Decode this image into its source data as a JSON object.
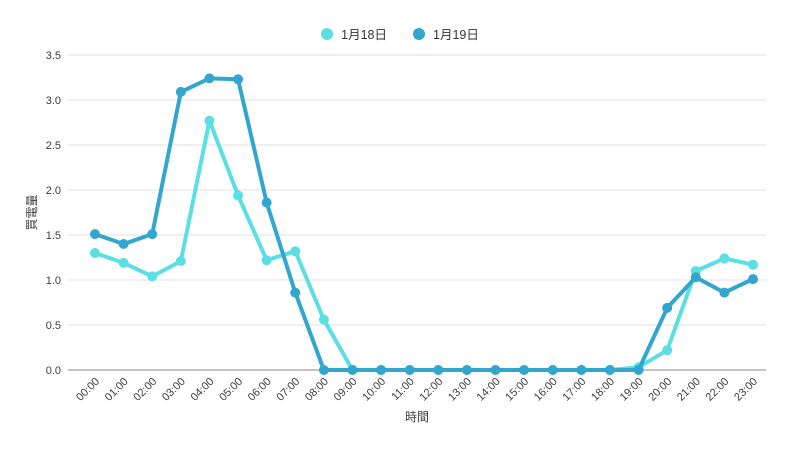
{
  "page": {
    "background": "#ffffff"
  },
  "chart_data": {
    "type": "line",
    "title": "",
    "xlabel": "時間",
    "ylabel": "買電量",
    "x": [
      "00:00",
      "01:00",
      "02:00",
      "03:00",
      "04:00",
      "05:00",
      "06:00",
      "07:00",
      "08:00",
      "09:00",
      "10:00",
      "11:00",
      "12:00",
      "13:00",
      "14:00",
      "15:00",
      "16:00",
      "17:00",
      "18:00",
      "19:00",
      "20:00",
      "21:00",
      "22:00",
      "23:00"
    ],
    "series": [
      {
        "name": "1月18日",
        "color": "#5BDFE3",
        "values": [
          1.3,
          1.19,
          1.04,
          1.21,
          2.77,
          1.94,
          1.22,
          1.32,
          0.56,
          0.0,
          0.0,
          0.0,
          0.0,
          0.0,
          0.0,
          0.0,
          0.0,
          0.0,
          0.0,
          0.03,
          0.22,
          1.1,
          1.24,
          1.17
        ]
      },
      {
        "name": "1月19日",
        "color": "#33A6CE",
        "values": [
          1.51,
          1.4,
          1.51,
          3.09,
          3.24,
          3.23,
          1.86,
          0.86,
          0.0,
          0.0,
          0.0,
          0.0,
          0.0,
          0.0,
          0.0,
          0.0,
          0.0,
          0.0,
          0.0,
          0.0,
          0.69,
          1.03,
          0.86,
          1.01
        ]
      }
    ],
    "ylim": [
      0,
      3.5
    ],
    "ytick_step": 0.5,
    "yticks": [
      "0.0",
      "0.5",
      "1.0",
      "1.5",
      "2.0",
      "2.5",
      "3.0",
      "3.5"
    ],
    "grid": "horizontal",
    "legend_position": "top-center",
    "x_label_rotation": -45,
    "grid_color": "#e2e2e2",
    "axis_color": "#888888",
    "text_color": "#3d3d3d"
  }
}
